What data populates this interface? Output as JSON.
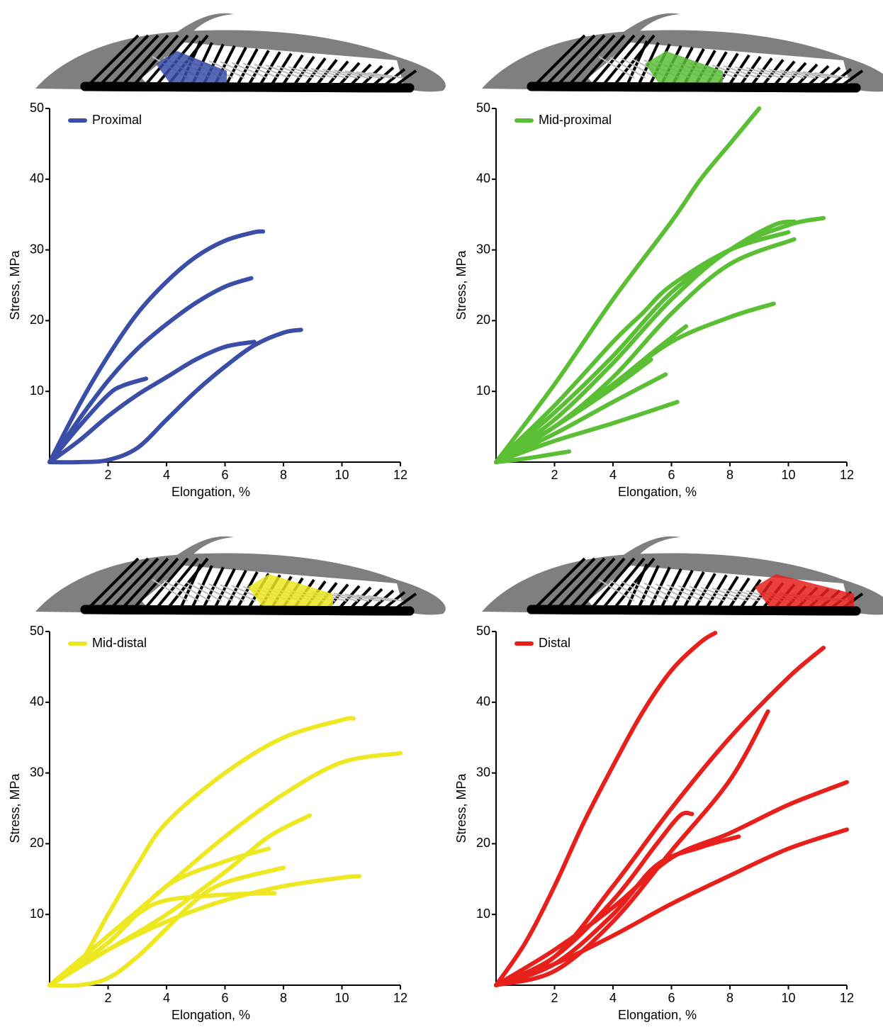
{
  "chart_data": [
    {
      "type": "line",
      "legend": "Proximal",
      "color": "#3a4ea8",
      "x_label": "Elongation, %",
      "y_label": "Stress, MPa",
      "xlim": [
        0,
        12
      ],
      "ylim": [
        0,
        50
      ],
      "xticks": [
        2,
        4,
        6,
        8,
        10,
        12
      ],
      "yticks": [
        10,
        20,
        30,
        40,
        50
      ],
      "series": [
        {
          "x": [
            0,
            1,
            2,
            3,
            4,
            5,
            6,
            7,
            7.3
          ],
          "values": [
            0,
            8,
            15,
            21,
            25.5,
            29,
            31.3,
            32.5,
            32.6
          ]
        },
        {
          "x": [
            0,
            1,
            2,
            3,
            4,
            5,
            6,
            6.9
          ],
          "values": [
            0,
            6,
            11.5,
            16,
            19.5,
            22.5,
            24.8,
            26
          ]
        },
        {
          "x": [
            0,
            1,
            2,
            2.5,
            3.3
          ],
          "values": [
            0,
            5,
            9.5,
            10.8,
            11.8
          ]
        },
        {
          "x": [
            0,
            1,
            2,
            3,
            4,
            5,
            6,
            7
          ],
          "values": [
            0,
            3,
            6.5,
            9.5,
            12,
            14.5,
            16.3,
            17
          ]
        },
        {
          "x": [
            0,
            1,
            2,
            3,
            4,
            5,
            6,
            7,
            8,
            8.6
          ],
          "values": [
            0,
            0,
            0.3,
            2,
            6,
            10,
            13.5,
            16.5,
            18.3,
            18.7
          ]
        }
      ]
    },
    {
      "type": "line",
      "legend": "Mid-proximal",
      "color": "#5bbf35",
      "x_label": "Elongation, %",
      "y_label": "Stress, MPa",
      "xlim": [
        0,
        12
      ],
      "ylim": [
        0,
        50
      ],
      "xticks": [
        2,
        4,
        6,
        8,
        10,
        12
      ],
      "yticks": [
        10,
        20,
        30,
        40,
        50
      ],
      "series": [
        {
          "x": [
            0,
            2,
            4,
            6,
            7,
            8,
            9
          ],
          "values": [
            0,
            11,
            23,
            34,
            40,
            45,
            50
          ]
        },
        {
          "x": [
            0,
            2,
            4,
            6,
            8,
            9.5,
            10.2
          ],
          "values": [
            0,
            7,
            15,
            24,
            30,
            33.5,
            34
          ]
        },
        {
          "x": [
            0,
            2,
            4,
            6,
            8,
            10,
            11.2
          ],
          "values": [
            0,
            6,
            14,
            23,
            30,
            33.5,
            34.5
          ]
        },
        {
          "x": [
            0,
            2,
            4,
            6,
            8,
            10.2
          ],
          "values": [
            0,
            5,
            12,
            21,
            28,
            31.5
          ]
        },
        {
          "x": [
            0,
            2,
            4,
            6,
            8,
            9.5
          ],
          "values": [
            0,
            5,
            11,
            17,
            20.5,
            22.4
          ]
        },
        {
          "x": [
            0,
            2,
            4,
            5.8
          ],
          "values": [
            0,
            4,
            8.5,
            12.4
          ]
        },
        {
          "x": [
            0,
            2,
            4,
            6.2
          ],
          "values": [
            0,
            3,
            5.5,
            8.5
          ]
        },
        {
          "x": [
            0,
            1,
            2.5
          ],
          "values": [
            0,
            0.5,
            1.5
          ]
        },
        {
          "x": [
            0,
            2,
            4,
            5.5,
            6.5
          ],
          "values": [
            0,
            5,
            11,
            16,
            19.2
          ]
        },
        {
          "x": [
            0,
            2,
            4,
            5.3
          ],
          "values": [
            0,
            5,
            10.5,
            14.5
          ]
        },
        {
          "x": [
            0,
            2,
            4,
            5,
            6,
            8,
            10
          ],
          "values": [
            0,
            8,
            17,
            21,
            25,
            30,
            32.5
          ]
        }
      ]
    },
    {
      "type": "line",
      "legend": "Mid-distal",
      "color": "#ede821",
      "x_label": "Elongation, %",
      "y_label": "Stress, MPa",
      "xlim": [
        0,
        12
      ],
      "ylim": [
        0,
        50
      ],
      "xticks": [
        2,
        4,
        6,
        8,
        10,
        12
      ],
      "yticks": [
        10,
        20,
        30,
        40,
        50
      ],
      "series": [
        {
          "x": [
            0,
            1,
            2,
            3,
            4,
            6,
            8,
            10,
            10.4
          ],
          "values": [
            0,
            3,
            10,
            17,
            23,
            30,
            35,
            37.5,
            37.7
          ]
        },
        {
          "x": [
            0,
            2,
            4,
            6,
            8,
            10,
            12
          ],
          "values": [
            0,
            7,
            14,
            21,
            27,
            31.5,
            32.8
          ]
        },
        {
          "x": [
            0,
            2,
            4,
            6,
            7.5,
            8.9
          ],
          "values": [
            0,
            5,
            10,
            16,
            21,
            24
          ]
        },
        {
          "x": [
            0,
            2,
            4,
            6,
            7.5
          ],
          "values": [
            0,
            6,
            14,
            17.5,
            19.3
          ]
        },
        {
          "x": [
            0,
            1,
            2,
            3,
            4,
            5,
            6,
            8
          ],
          "values": [
            0,
            0,
            1,
            4,
            8,
            12,
            14.5,
            16.6
          ]
        },
        {
          "x": [
            0,
            2,
            4,
            6,
            8,
            10,
            10.6
          ],
          "values": [
            0,
            5,
            9,
            12,
            14,
            15.2,
            15.4
          ]
        },
        {
          "x": [
            0,
            2,
            3,
            4,
            6,
            7.7
          ],
          "values": [
            0,
            6,
            10,
            12,
            12.8,
            13
          ]
        }
      ]
    },
    {
      "type": "line",
      "legend": "Distal",
      "color": "#e8201c",
      "x_label": "Elongation, %",
      "y_label": "Stress, MPa",
      "xlim": [
        0,
        12
      ],
      "ylim": [
        0,
        50
      ],
      "xticks": [
        2,
        4,
        6,
        8,
        10,
        12
      ],
      "yticks": [
        10,
        20,
        30,
        40,
        50
      ],
      "series": [
        {
          "x": [
            0,
            1,
            2,
            3,
            4,
            5,
            6,
            7,
            7.5
          ],
          "values": [
            0,
            6,
            14,
            23,
            31,
            38.5,
            44.5,
            48.5,
            49.8
          ]
        },
        {
          "x": [
            0,
            2,
            4,
            6,
            8,
            10,
            11.2
          ],
          "values": [
            0,
            4,
            14,
            25,
            35,
            43.5,
            47.7
          ]
        },
        {
          "x": [
            0,
            2,
            4,
            6,
            8,
            9.3
          ],
          "values": [
            0,
            2,
            9,
            19,
            29,
            38.7
          ]
        },
        {
          "x": [
            0,
            2,
            4,
            5.5,
            6.3,
            6.7
          ],
          "values": [
            0,
            4,
            12,
            20,
            24,
            24.2
          ]
        },
        {
          "x": [
            0,
            2,
            4,
            5.5,
            7,
            8.3
          ],
          "values": [
            0,
            3,
            10,
            17,
            19.5,
            21
          ]
        },
        {
          "x": [
            0,
            2,
            4,
            6,
            8,
            10,
            12
          ],
          "values": [
            0,
            5,
            11,
            18,
            21.5,
            25.5,
            28.7
          ]
        },
        {
          "x": [
            0,
            2,
            4,
            6,
            8,
            10,
            12
          ],
          "values": [
            0,
            3,
            7,
            11.5,
            15.5,
            19.3,
            22
          ]
        }
      ]
    }
  ]
}
